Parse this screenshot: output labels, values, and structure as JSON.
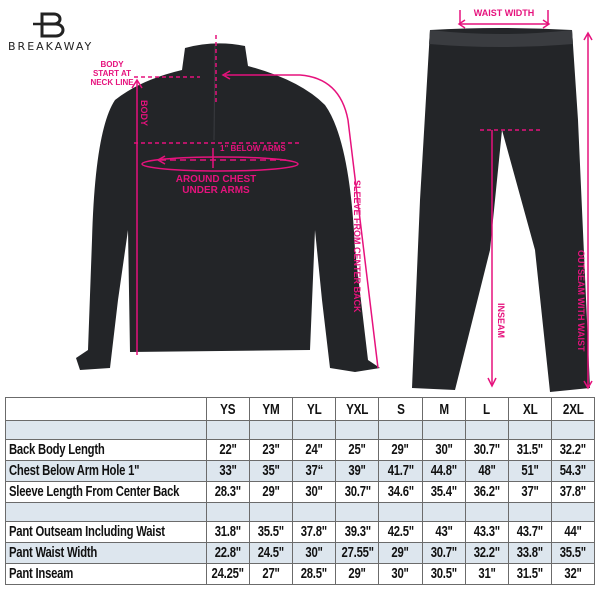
{
  "brand": {
    "name": "BREAKAWAY",
    "accent": "#e6127d"
  },
  "annotations": {
    "body_start": [
      "BODY",
      "START AT",
      "NECK LINE"
    ],
    "body": "BODY",
    "below_arms": "1\" BELOW ARMS",
    "around_chest": [
      "AROUND CHEST",
      "UNDER ARMS"
    ],
    "sleeve": "SLEEVE FROM CENTER BACK",
    "waist_width": "WAIST WIDTH",
    "inseam": "INSEAM",
    "outseam": "OUTSEAM WITH WAIST"
  },
  "table": {
    "sizes": [
      "YS",
      "YM",
      "YL",
      "YXL",
      "S",
      "M",
      "L",
      "XL",
      "2XL"
    ],
    "jacket_rows": [
      {
        "label": "Back Body Length",
        "values": [
          "22\"",
          "23\"",
          "24\"",
          "25\"",
          "29\"",
          "30\"",
          "30.7\"",
          "31.5\"",
          "32.2\""
        ]
      },
      {
        "label": "Chest Below Arm Hole 1\"",
        "values": [
          "33\"",
          "35\"",
          "37“",
          "39\"",
          "41.7\"",
          "44.8\"",
          "48\"",
          "51\"",
          "54.3\""
        ]
      },
      {
        "label": "Sleeve Length From Center Back",
        "values": [
          "28.3\"",
          "29\"",
          "30\"",
          "30.7\"",
          "34.6\"",
          "35.4\"",
          "36.2\"",
          "37\"",
          "37.8\""
        ]
      }
    ],
    "pant_rows": [
      {
        "label": "Pant Outseam Including Waist",
        "values": [
          "31.8\"",
          "35.5\"",
          "37.8\"",
          "39.3\"",
          "42.5\"",
          "43\"",
          "43.3\"",
          "43.7\"",
          "44\""
        ]
      },
      {
        "label": "Pant Waist Width",
        "values": [
          "22.8\"",
          "24.5\"",
          "30\"",
          "27.55\"",
          "29\"",
          "30.7\"",
          "32.2\"",
          "33.8\"",
          "35.5\""
        ]
      },
      {
        "label": "Pant Inseam",
        "values": [
          "24.25\"",
          "27\"",
          "28.5\"",
          "29\"",
          "30\"",
          "30.5\"",
          "31\"",
          "31.5\"",
          "32\""
        ]
      }
    ]
  }
}
